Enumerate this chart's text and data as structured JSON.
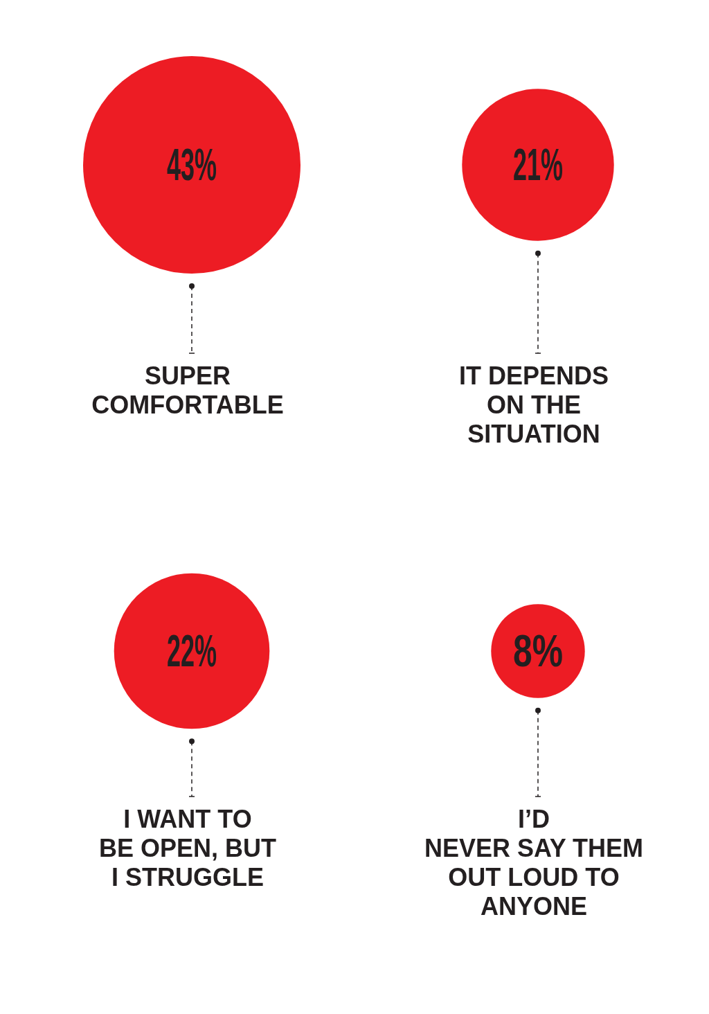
{
  "chart_data": {
    "type": "other",
    "categories": [
      "SUPER\nCOMFORTABLE",
      "IT DEPENDS\nON THE\nSITUATION",
      "I WANT TO\nBE OPEN, BUT\nI STRUGGLE",
      "I’D\nNEVER SAY THEM\nOUT LOUD TO\nANYONE"
    ],
    "values": [
      43,
      21,
      22,
      8
    ],
    "value_labels": [
      "43%",
      "21%",
      "22%",
      "8%"
    ],
    "color": "#ed1c24"
  }
}
